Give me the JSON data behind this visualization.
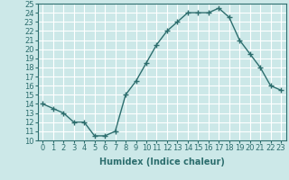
{
  "x": [
    0,
    1,
    2,
    3,
    4,
    5,
    6,
    7,
    8,
    9,
    10,
    11,
    12,
    13,
    14,
    15,
    16,
    17,
    18,
    19,
    20,
    21,
    22,
    23
  ],
  "y": [
    14.0,
    13.5,
    13.0,
    12.0,
    12.0,
    10.5,
    10.5,
    11.0,
    15.0,
    16.5,
    18.5,
    20.5,
    22.0,
    23.0,
    24.0,
    24.0,
    24.0,
    24.5,
    23.5,
    21.0,
    19.5,
    18.0,
    16.0,
    15.5
  ],
  "line_color": "#2d6e6e",
  "marker": "+",
  "markersize": 4,
  "linewidth": 1.0,
  "markeredgewidth": 1.0,
  "xlabel": "Humidex (Indice chaleur)",
  "xlim": [
    -0.5,
    23.5
  ],
  "ylim": [
    10,
    25
  ],
  "yticks": [
    10,
    11,
    12,
    13,
    14,
    15,
    16,
    17,
    18,
    19,
    20,
    21,
    22,
    23,
    24,
    25
  ],
  "xticks": [
    0,
    1,
    2,
    3,
    4,
    5,
    6,
    7,
    8,
    9,
    10,
    11,
    12,
    13,
    14,
    15,
    16,
    17,
    18,
    19,
    20,
    21,
    22,
    23
  ],
  "bg_color": "#cce8e8",
  "grid_color": "#ffffff",
  "label_fontsize": 7,
  "tick_fontsize": 6
}
